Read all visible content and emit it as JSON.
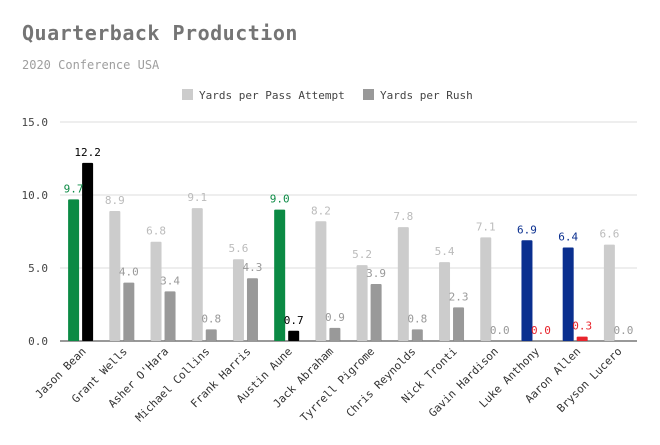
{
  "chart_data": {
    "type": "bar",
    "title": "Quarterback Production",
    "subtitle": "2020 Conference USA",
    "categories": [
      "Jason Bean",
      "Grant Wells",
      "Asher O'Hara",
      "Michael Collins",
      "Frank Harris",
      "Austin Aune",
      "Jack Abraham",
      "Tyrrell Pigrome",
      "Chris Reynolds",
      "Nick Tronti",
      "Gavin Hardison",
      "Luke Anthony",
      "Aaron Allen",
      "Bryson Lucero"
    ],
    "series": [
      {
        "name": "Yards per Pass Attempt",
        "values": [
          9.7,
          8.9,
          6.8,
          9.1,
          5.6,
          9.0,
          8.2,
          5.2,
          7.8,
          5.4,
          7.1,
          6.9,
          6.4,
          6.6
        ]
      },
      {
        "name": "Yards per Rush",
        "values": [
          12.2,
          4.0,
          3.4,
          0.8,
          4.3,
          0.7,
          0.9,
          3.9,
          0.8,
          2.3,
          0.0,
          0.0,
          0.3,
          0.0
        ]
      }
    ],
    "ylim": [
      0,
      15
    ],
    "yticks": [
      "0.0",
      "5.0",
      "10.0",
      "15.0"
    ],
    "grid": true,
    "legend_position": "top-center",
    "colors": {
      "pass_default": "#cccccc",
      "rush_default": "#999999",
      "highlight_colors": {
        "0": [
          "#0b8a44",
          "#000000"
        ],
        "5": [
          "#0b8a44",
          "#000000"
        ],
        "11": [
          "#0a2f8f",
          "#e8242c"
        ],
        "12": [
          "#0a2f8f",
          "#e8242c"
        ]
      }
    }
  }
}
